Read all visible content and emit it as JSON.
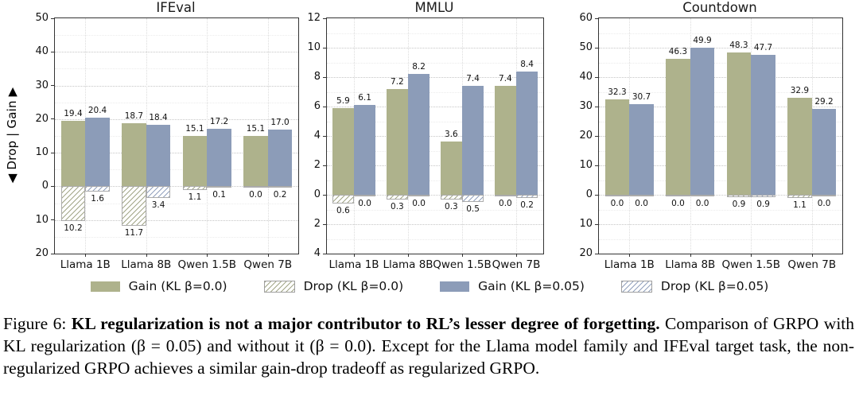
{
  "figure": {
    "colors": {
      "beta0": "#aeb28c",
      "beta005": "#8c9cb8",
      "beta0_hatch": "#a3a789",
      "beta005_hatch": "#93a2be",
      "hatch_edge": "#ababab",
      "grid_major": "#c6c6c6",
      "grid_minor": "#ebebeb",
      "spine": "#333333"
    },
    "legend": {
      "items": [
        {
          "label": "Gain (KL β=0.0)",
          "style": "solid",
          "color_key": "beta0"
        },
        {
          "label": "Drop (KL β=0.0)",
          "style": "hatch",
          "color_key": "beta0"
        },
        {
          "label": "Gain (KL β=0.05)",
          "style": "solid",
          "color_key": "beta005"
        },
        {
          "label": "Drop (KL β=0.05)",
          "style": "hatch",
          "color_key": "beta005"
        }
      ]
    }
  },
  "chart_data": [
    {
      "type": "bar",
      "title": "IFEval",
      "ylabel": "◀ Drop | Gain ▶",
      "categories": [
        "Llama 1B",
        "Llama 8B",
        "Qwen 1.5B",
        "Qwen 7B"
      ],
      "series": [
        {
          "name": "Gain (KL β=0.0)",
          "role": "gain",
          "beta": "0.0",
          "values": [
            19.4,
            18.7,
            15.1,
            15.1
          ]
        },
        {
          "name": "Drop (KL β=0.0)",
          "role": "drop",
          "beta": "0.0",
          "values": [
            10.2,
            11.7,
            1.1,
            0.0
          ]
        },
        {
          "name": "Gain (KL β=0.05)",
          "role": "gain",
          "beta": "0.05",
          "values": [
            20.4,
            18.4,
            17.2,
            17.0
          ]
        },
        {
          "name": "Drop (KL β=0.05)",
          "role": "drop",
          "beta": "0.05",
          "values": [
            1.6,
            3.4,
            0.1,
            0.2
          ]
        }
      ],
      "ylim": [
        -20,
        50
      ],
      "ytick_major": 10,
      "ytick_minor": 5,
      "grid": true,
      "legend_position": "below"
    },
    {
      "type": "bar",
      "title": "MMLU",
      "ylabel": "",
      "categories": [
        "Llama 1B",
        "Llama 8B",
        "Qwen 1.5B",
        "Qwen 7B"
      ],
      "series": [
        {
          "name": "Gain (KL β=0.0)",
          "role": "gain",
          "beta": "0.0",
          "values": [
            5.9,
            7.2,
            3.6,
            7.4
          ]
        },
        {
          "name": "Drop (KL β=0.0)",
          "role": "drop",
          "beta": "0.0",
          "values": [
            0.6,
            0.3,
            0.3,
            0.0
          ]
        },
        {
          "name": "Gain (KL β=0.05)",
          "role": "gain",
          "beta": "0.05",
          "values": [
            6.1,
            8.2,
            7.4,
            8.4
          ]
        },
        {
          "name": "Drop (KL β=0.05)",
          "role": "drop",
          "beta": "0.05",
          "values": [
            0.0,
            0.0,
            0.5,
            0.2
          ]
        }
      ],
      "ylim": [
        -4,
        12
      ],
      "ytick_major": 2,
      "ytick_minor": 1,
      "grid": true,
      "legend_position": "below"
    },
    {
      "type": "bar",
      "title": "Countdown",
      "ylabel": "",
      "categories": [
        "Llama 1B",
        "Llama 8B",
        "Qwen 1.5B",
        "Qwen 7B"
      ],
      "series": [
        {
          "name": "Gain (KL β=0.0)",
          "role": "gain",
          "beta": "0.0",
          "values": [
            32.3,
            46.3,
            48.3,
            32.9
          ]
        },
        {
          "name": "Drop (KL β=0.0)",
          "role": "drop",
          "beta": "0.0",
          "values": [
            0.0,
            0.0,
            0.9,
            1.1
          ]
        },
        {
          "name": "Gain (KL β=0.05)",
          "role": "gain",
          "beta": "0.05",
          "values": [
            30.7,
            49.9,
            47.7,
            29.2
          ]
        },
        {
          "name": "Drop (KL β=0.05)",
          "role": "drop",
          "beta": "0.05",
          "values": [
            0.0,
            0.0,
            0.9,
            0.0
          ]
        }
      ],
      "ylim": [
        -20,
        60
      ],
      "ytick_major": 10,
      "ytick_minor": 5,
      "grid": true,
      "legend_position": "below"
    }
  ],
  "caption": {
    "label": "Figure 6:",
    "bold": "KL regularization is not a major contributor to RL’s lesser degree of forgetting.",
    "body": "Comparison of GRPO with KL regularization (β = 0.05) and without it (β = 0.0). Except for the Llama model family and IFEval target task, the non-regularized GRPO achieves a similar gain-drop tradeoff as regularized GRPO."
  }
}
